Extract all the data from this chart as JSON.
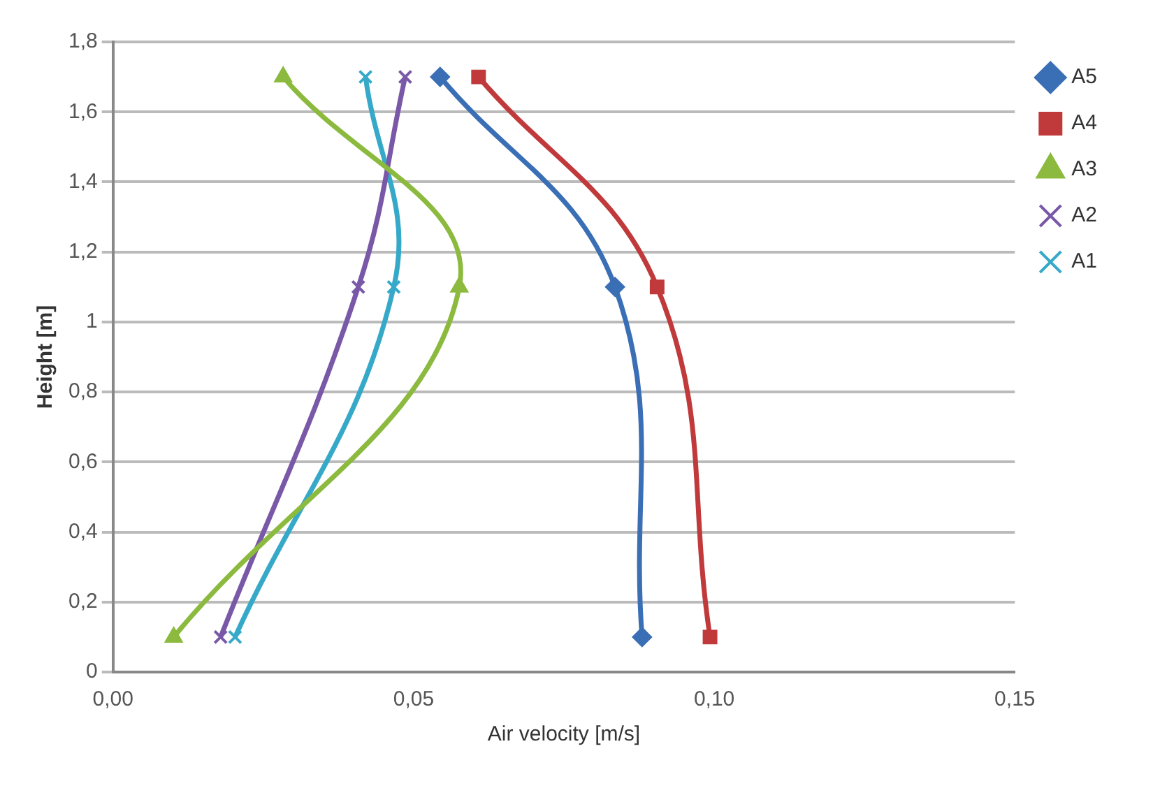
{
  "chart_data": {
    "type": "line",
    "xlabel": "Air velocity [m/s]",
    "ylabel": "Height [m]",
    "xlim": [
      0,
      0.15
    ],
    "xticks": [
      {
        "value": 0,
        "label": "0,00"
      },
      {
        "value": 0.05,
        "label": "0,05"
      },
      {
        "value": 0.1,
        "label": "0,10"
      },
      {
        "value": 0.15,
        "label": "0,15"
      }
    ],
    "ylim": [
      0,
      1.8
    ],
    "yticks": [
      0,
      {
        "value": 0.2,
        "label": "0,2"
      },
      {
        "value": 0.4,
        "label": "0,4"
      },
      {
        "value": 0.6,
        "label": "0,6"
      },
      {
        "value": 0.8,
        "label": "0,8"
      },
      1,
      {
        "value": 1.2,
        "label": "1,2"
      },
      {
        "value": 1.4,
        "label": "1,4"
      },
      {
        "value": 1.6,
        "label": "1,6"
      },
      {
        "value": 1.8,
        "label": "1,8"
      }
    ],
    "grid": "y",
    "legend": "right",
    "series": [
      {
        "name": "A5",
        "color": "#3a6fb5",
        "marker": "diamond",
        "x": [
          0.088,
          0.0835,
          0.0544
        ],
        "values": [
          0.1,
          1.1,
          1.7
        ]
      },
      {
        "name": "A4",
        "color": "#c0393b",
        "marker": "square",
        "x": [
          0.0993,
          0.0905,
          0.0608
        ],
        "values": [
          0.1,
          1.1,
          1.7
        ]
      },
      {
        "name": "A3",
        "color": "#8cba3f",
        "marker": "triangle",
        "x": [
          0.0101,
          0.0576,
          0.0283
        ],
        "values": [
          0.1,
          1.1,
          1.7
        ]
      },
      {
        "name": "A2",
        "color": "#7a58a8",
        "marker": "cross",
        "x": [
          0.0179,
          0.0408,
          0.0486
        ],
        "values": [
          0.1,
          1.1,
          1.7
        ]
      },
      {
        "name": "A1",
        "color": "#36a9c9",
        "marker": "cross",
        "x": [
          0.0203,
          0.0467,
          0.042
        ],
        "values": [
          0.1,
          1.1,
          1.7
        ]
      }
    ]
  }
}
